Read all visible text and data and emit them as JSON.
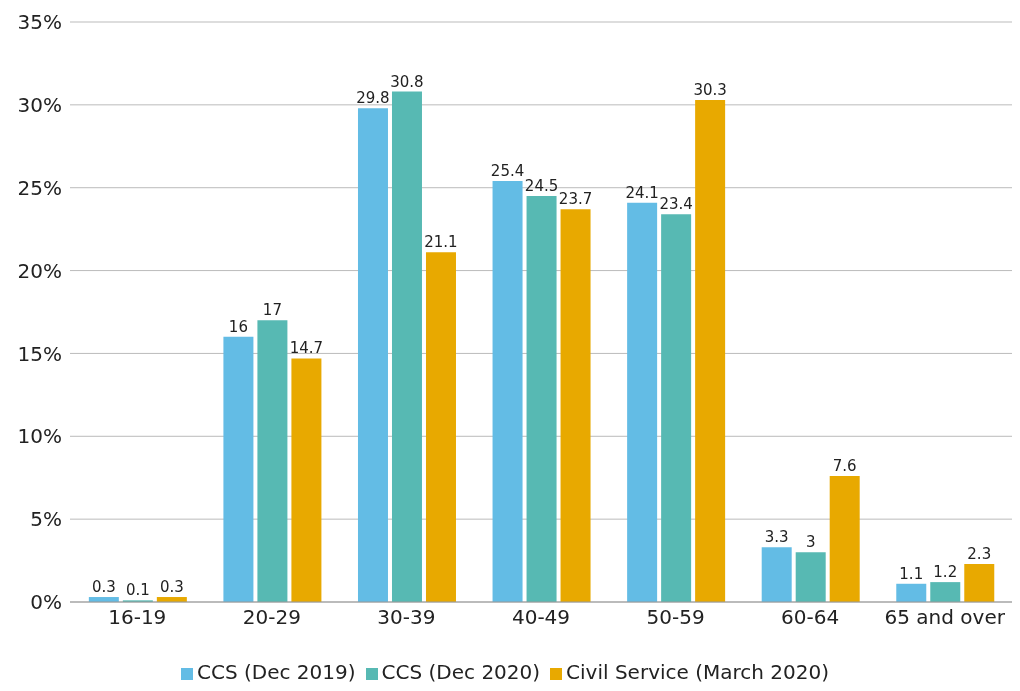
{
  "chart_data": {
    "type": "bar",
    "categories": [
      "16-19",
      "20-29",
      "30-39",
      "40-49",
      "50-59",
      "60-64",
      "65 and over"
    ],
    "series": [
      {
        "name": "CCS (Dec 2019)",
        "color": "#63bce5",
        "values": [
          0.3,
          16,
          29.8,
          25.4,
          24.1,
          3.3,
          1.1
        ]
      },
      {
        "name": "CCS (Dec 2020)",
        "color": "#57b9b3",
        "values": [
          0.1,
          17,
          30.8,
          24.5,
          23.4,
          3,
          1.2
        ]
      },
      {
        "name": "Civil Service (March 2020)",
        "color": "#e8a900",
        "values": [
          0.3,
          14.7,
          21.1,
          23.7,
          30.3,
          7.6,
          2.3
        ]
      }
    ],
    "ylim": [
      0,
      35
    ],
    "yticks": [
      {
        "value": 0,
        "label": "0%"
      },
      {
        "value": 5,
        "label": "5%"
      },
      {
        "value": 10,
        "label": "10%"
      },
      {
        "value": 15,
        "label": "15%"
      },
      {
        "value": 20,
        "label": "20%"
      },
      {
        "value": 25,
        "label": "25%"
      },
      {
        "value": 30,
        "label": "30%"
      },
      {
        "value": 35,
        "label": "35%"
      }
    ],
    "grid": "y",
    "legend": "bottom",
    "data_labels": true
  }
}
